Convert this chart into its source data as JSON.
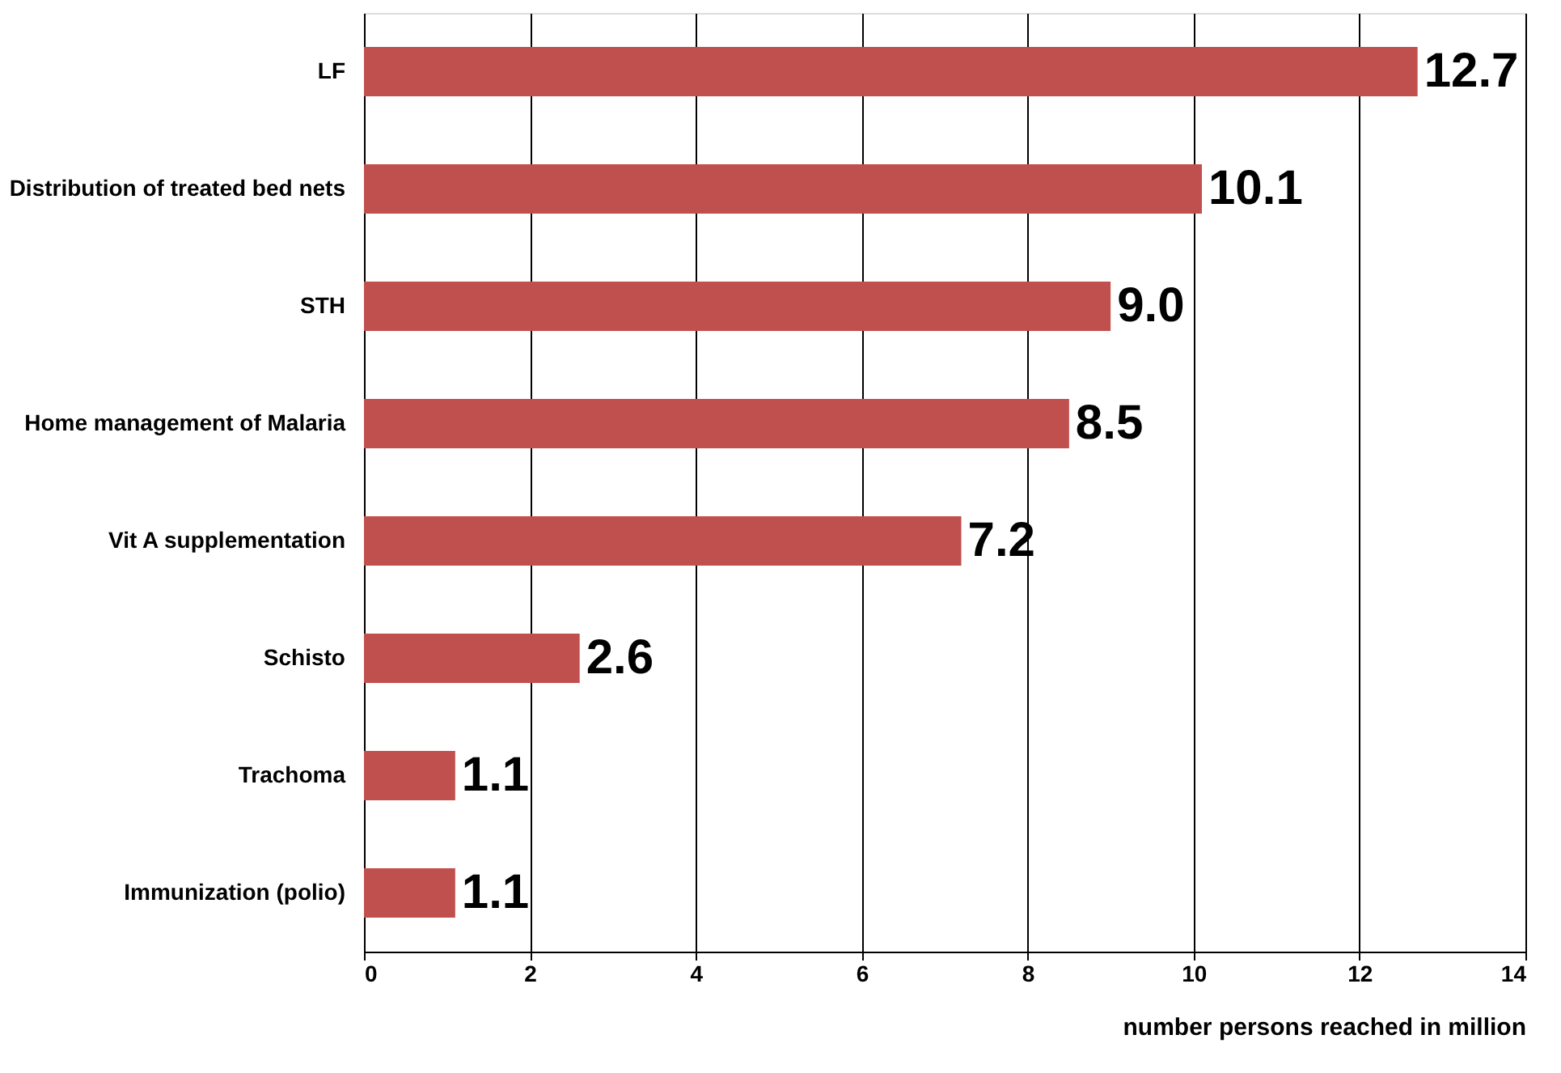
{
  "chart_data": {
    "type": "bar",
    "orientation": "horizontal",
    "categories": [
      "LF",
      "Distribution of treated bed nets",
      "STH",
      "Home management of Malaria",
      "Vit A supplementation",
      "Schisto",
      "Trachoma",
      "Immunization (polio)"
    ],
    "values": [
      12.7,
      10.1,
      9.0,
      8.5,
      7.2,
      2.6,
      1.1,
      1.1
    ],
    "value_labels": [
      "12.7",
      "10.1",
      "9.0",
      "8.5",
      "7.2",
      "2.6",
      "1.1",
      "1.1"
    ],
    "color": "#c0504d",
    "xlim": [
      0,
      14
    ],
    "xticks": [
      0,
      2,
      4,
      6,
      8,
      10,
      12,
      14
    ],
    "grid": "x",
    "xlabel": "number persons reached in million"
  }
}
